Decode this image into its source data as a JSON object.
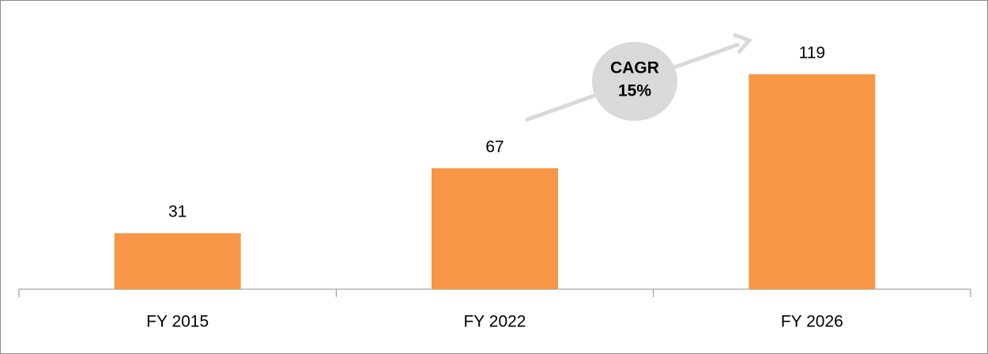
{
  "chart_data": {
    "type": "bar",
    "categories": [
      "FY 2015",
      "FY 2022",
      "FY 2026"
    ],
    "values": [
      31,
      67,
      119
    ],
    "color": "#f79646",
    "annotation": [
      "CAGR",
      "15%"
    ]
  }
}
